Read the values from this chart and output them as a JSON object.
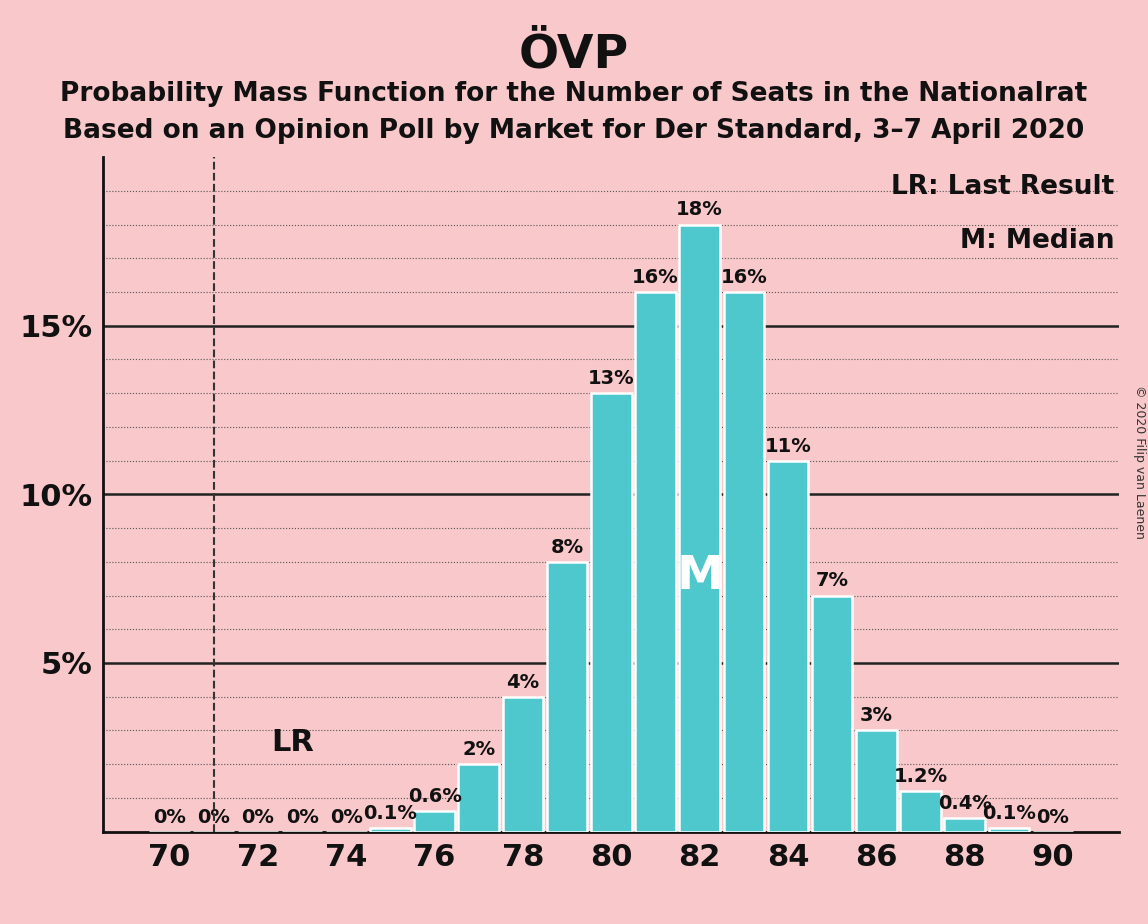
{
  "title": "ÖVP",
  "subtitle1": "Probability Mass Function for the Number of Seats in the Nationalrat",
  "subtitle2": "Based on an Opinion Poll by Market for Der Standard, 3–7 April 2020",
  "copyright": "© 2020 Filip van Laenen",
  "legend_lr": "LR: Last Result",
  "legend_m": "M: Median",
  "background_color": "#f9c8cb",
  "bar_color": "#4ec8cc",
  "bar_edge_color": "#ffffff",
  "seats": [
    70,
    71,
    72,
    73,
    74,
    75,
    76,
    77,
    78,
    79,
    80,
    81,
    82,
    83,
    84,
    85,
    86,
    87,
    88,
    89,
    90
  ],
  "probabilities": [
    0.0,
    0.0,
    0.0,
    0.0,
    0.0,
    0.001,
    0.006,
    0.02,
    0.04,
    0.08,
    0.13,
    0.16,
    0.18,
    0.16,
    0.11,
    0.07,
    0.03,
    0.012,
    0.004,
    0.001,
    0.0
  ],
  "labels": [
    "0%",
    "0%",
    "0%",
    "0%",
    "0%",
    "0.1%",
    "0.6%",
    "2%",
    "4%",
    "8%",
    "13%",
    "16%",
    "18%",
    "16%",
    "11%",
    "7%",
    "3%",
    "1.2%",
    "0.4%",
    "0.1%",
    "0%"
  ],
  "median_seat": 82,
  "lr_seat": 71,
  "ylim": [
    0,
    0.2
  ],
  "yticks": [
    0.05,
    0.1,
    0.15
  ],
  "ytick_labels": [
    "5%",
    "10%",
    "15%"
  ],
  "xticks": [
    70,
    72,
    74,
    76,
    78,
    80,
    82,
    84,
    86,
    88,
    90
  ],
  "title_fontsize": 34,
  "subtitle_fontsize": 19,
  "tick_fontsize": 22,
  "label_fontsize": 14,
  "legend_fontsize": 19,
  "lr_label_fontsize": 22,
  "median_label_fontsize": 34
}
